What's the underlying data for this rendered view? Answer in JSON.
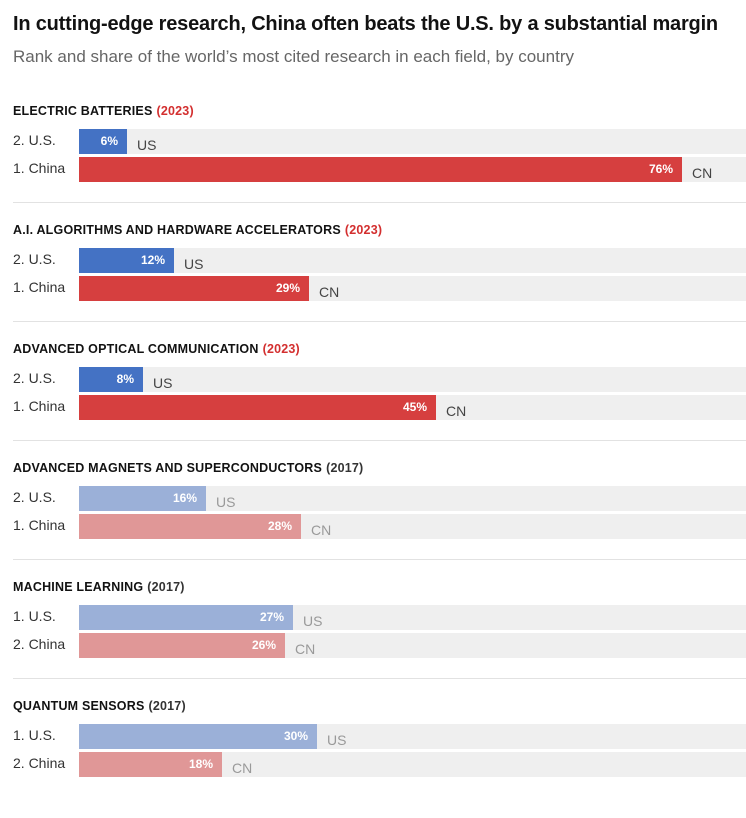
{
  "header": {
    "title": "In cutting-edge research, China often beats the U.S. by a substantial margin",
    "subtitle": "Rank and share of the world’s most cited research in each field, by country"
  },
  "colors": {
    "us_strong": "#4472c4",
    "cn_strong": "#d63f3f",
    "us_light": "#9bb0d8",
    "cn_light": "#e09797",
    "year_highlight": "#d32f2f",
    "year_muted": "#333333",
    "code_strong": "#444444",
    "code_muted": "#999999"
  },
  "chart_data": {
    "type": "bar",
    "orientation": "horizontal",
    "unit": "%",
    "xlim": [
      0,
      84
    ],
    "panels": [
      {
        "field": "ELECTRIC BATTERIES",
        "year": "(2023)",
        "highlight": true,
        "rows": [
          {
            "label": "2. U.S.",
            "code": "US",
            "value": 6,
            "value_label": "6%"
          },
          {
            "label": "1. China",
            "code": "CN",
            "value": 76,
            "value_label": "76%"
          }
        ]
      },
      {
        "field": "A.I. ALGORITHMS AND HARDWARE ACCELERATORS",
        "year": "(2023)",
        "highlight": true,
        "rows": [
          {
            "label": "2. U.S.",
            "code": "US",
            "value": 12,
            "value_label": "12%"
          },
          {
            "label": "1. China",
            "code": "CN",
            "value": 29,
            "value_label": "29%"
          }
        ]
      },
      {
        "field": "ADVANCED OPTICAL COMMUNICATION",
        "year": "(2023)",
        "highlight": true,
        "rows": [
          {
            "label": "2. U.S.",
            "code": "US",
            "value": 8,
            "value_label": "8%"
          },
          {
            "label": "1. China",
            "code": "CN",
            "value": 45,
            "value_label": "45%"
          }
        ]
      },
      {
        "field": "ADVANCED MAGNETS AND SUPERCONDUCTORS",
        "year": "(2017)",
        "highlight": false,
        "rows": [
          {
            "label": "2. U.S.",
            "code": "US",
            "value": 16,
            "value_label": "16%"
          },
          {
            "label": "1. China",
            "code": "CN",
            "value": 28,
            "value_label": "28%"
          }
        ]
      },
      {
        "field": "MACHINE LEARNING",
        "year": "(2017)",
        "highlight": false,
        "rows": [
          {
            "label": "1. U.S.",
            "code": "US",
            "value": 27,
            "value_label": "27%"
          },
          {
            "label": "2. China",
            "code": "CN",
            "value": 26,
            "value_label": "26%"
          }
        ]
      },
      {
        "field": "QUANTUM SENSORS",
        "year": "(2017)",
        "highlight": false,
        "rows": [
          {
            "label": "1. U.S.",
            "code": "US",
            "value": 30,
            "value_label": "30%"
          },
          {
            "label": "2. China",
            "code": "CN",
            "value": 18,
            "value_label": "18%"
          }
        ]
      }
    ]
  }
}
